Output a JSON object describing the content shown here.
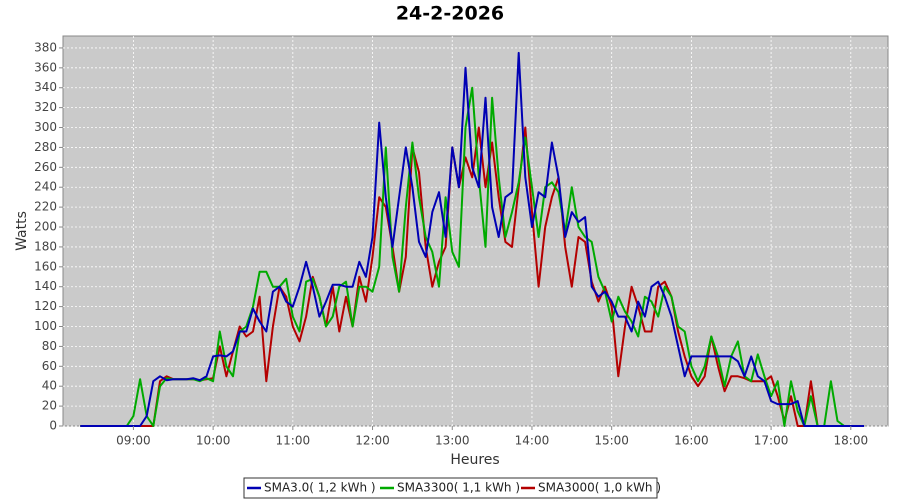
{
  "chart_data": {
    "type": "line",
    "title": "24-2-2026",
    "x_label": "Heures",
    "y_label": "Watts",
    "x": [
      "08:20",
      "08:25",
      "08:30",
      "08:35",
      "08:40",
      "08:45",
      "08:50",
      "08:55",
      "09:00",
      "09:05",
      "09:10",
      "09:15",
      "09:20",
      "09:25",
      "09:30",
      "09:35",
      "09:40",
      "09:45",
      "09:50",
      "09:55",
      "10:00",
      "10:05",
      "10:10",
      "10:15",
      "10:20",
      "10:25",
      "10:30",
      "10:35",
      "10:40",
      "10:45",
      "10:50",
      "10:55",
      "11:00",
      "11:05",
      "11:10",
      "11:15",
      "11:20",
      "11:25",
      "11:30",
      "11:35",
      "11:40",
      "11:45",
      "11:50",
      "11:55",
      "12:00",
      "12:05",
      "12:10",
      "12:15",
      "12:20",
      "12:25",
      "12:30",
      "12:35",
      "12:40",
      "12:45",
      "12:50",
      "12:55",
      "13:00",
      "13:05",
      "13:10",
      "13:15",
      "13:20",
      "13:25",
      "13:30",
      "13:35",
      "13:40",
      "13:45",
      "13:50",
      "13:55",
      "14:00",
      "14:05",
      "14:10",
      "14:15",
      "14:20",
      "14:25",
      "14:30",
      "14:35",
      "14:40",
      "14:45",
      "14:50",
      "14:55",
      "15:00",
      "15:05",
      "15:10",
      "15:15",
      "15:20",
      "15:25",
      "15:30",
      "15:35",
      "15:40",
      "15:45",
      "15:50",
      "15:55",
      "16:00",
      "16:05",
      "16:10",
      "16:15",
      "16:20",
      "16:25",
      "16:30",
      "16:35",
      "16:40",
      "16:45",
      "16:50",
      "16:55",
      "17:00",
      "17:05",
      "17:10",
      "17:15",
      "17:20",
      "17:25",
      "17:30",
      "17:35",
      "17:40",
      "17:45",
      "17:50",
      "17:55",
      "18:00",
      "18:05",
      "18:10"
    ],
    "series": [
      {
        "name": "SMA3.0( 1,2 kWh )",
        "color": "#0000b4",
        "values": [
          0,
          0,
          0,
          0,
          0,
          0,
          0,
          0,
          0,
          0,
          10,
          45,
          50,
          46,
          47,
          47,
          47,
          48,
          46,
          50,
          70,
          71,
          70,
          75,
          95,
          95,
          118,
          105,
          95,
          135,
          140,
          125,
          120,
          140,
          165,
          140,
          110,
          125,
          142,
          142,
          140,
          140,
          165,
          150,
          190,
          305,
          230,
          180,
          230,
          280,
          240,
          185,
          170,
          215,
          235,
          190,
          280,
          240,
          360,
          260,
          240,
          330,
          220,
          190,
          230,
          235,
          375,
          250,
          200,
          235,
          230,
          285,
          250,
          190,
          215,
          205,
          210,
          140,
          130,
          135,
          125,
          110,
          110,
          95,
          125,
          110,
          140,
          145,
          130,
          110,
          80,
          50,
          70,
          70,
          70,
          70,
          70,
          70,
          70,
          65,
          50,
          70,
          50,
          45,
          25,
          22,
          22,
          22,
          25,
          0,
          0,
          0,
          0,
          0,
          0,
          0,
          0,
          0,
          0
        ]
      },
      {
        "name": "SMA3300( 1,1 kWh )",
        "color": "#00aa00",
        "values": [
          0,
          0,
          0,
          0,
          0,
          0,
          0,
          0,
          10,
          47,
          10,
          0,
          40,
          48,
          47,
          47,
          47,
          47,
          45,
          48,
          45,
          95,
          60,
          50,
          95,
          100,
          120,
          155,
          155,
          140,
          140,
          148,
          110,
          95,
          145,
          148,
          130,
          100,
          110,
          140,
          145,
          100,
          140,
          140,
          135,
          160,
          280,
          170,
          135,
          220,
          285,
          230,
          190,
          175,
          140,
          230,
          175,
          160,
          300,
          340,
          250,
          180,
          330,
          250,
          190,
          215,
          245,
          290,
          240,
          190,
          240,
          245,
          235,
          195,
          240,
          200,
          190,
          185,
          150,
          135,
          105,
          130,
          115,
          105,
          90,
          130,
          125,
          110,
          140,
          130,
          100,
          95,
          60,
          45,
          60,
          90,
          70,
          40,
          70,
          85,
          50,
          45,
          72,
          50,
          30,
          45,
          0,
          45,
          15,
          0,
          30,
          0,
          0,
          45,
          5,
          0,
          0,
          0,
          0
        ]
      },
      {
        "name": "SMA3000( 1,0 kWh )",
        "color": "#b40000",
        "values": [
          0,
          0,
          0,
          0,
          0,
          0,
          0,
          0,
          0,
          0,
          0,
          0,
          45,
          50,
          47,
          47,
          47,
          47,
          46,
          47,
          48,
          80,
          50,
          75,
          100,
          90,
          95,
          130,
          45,
          100,
          140,
          130,
          100,
          85,
          110,
          150,
          130,
          100,
          140,
          95,
          130,
          100,
          150,
          125,
          170,
          230,
          220,
          180,
          135,
          170,
          280,
          255,
          180,
          140,
          165,
          180,
          280,
          240,
          270,
          250,
          300,
          240,
          285,
          230,
          185,
          180,
          240,
          300,
          215,
          140,
          200,
          230,
          250,
          180,
          140,
          190,
          185,
          145,
          125,
          140,
          120,
          50,
          100,
          140,
          120,
          95,
          95,
          140,
          145,
          130,
          95,
          70,
          50,
          40,
          50,
          90,
          60,
          35,
          50,
          50,
          48,
          45,
          45,
          45,
          50,
          30,
          5,
          30,
          0,
          0,
          45,
          0,
          0,
          0,
          0,
          0,
          0,
          0,
          0
        ]
      }
    ],
    "xlim": [
      "08:07",
      "18:28"
    ],
    "xticks": [
      "09:00",
      "10:00",
      "11:00",
      "12:00",
      "13:00",
      "14:00",
      "15:00",
      "16:00",
      "17:00",
      "18:00"
    ],
    "ylim": [
      0,
      392
    ],
    "yticks": [
      0,
      20,
      40,
      60,
      80,
      100,
      120,
      140,
      160,
      180,
      200,
      220,
      240,
      260,
      280,
      300,
      320,
      340,
      360,
      380
    ],
    "grid": true,
    "legend": "bottom"
  }
}
